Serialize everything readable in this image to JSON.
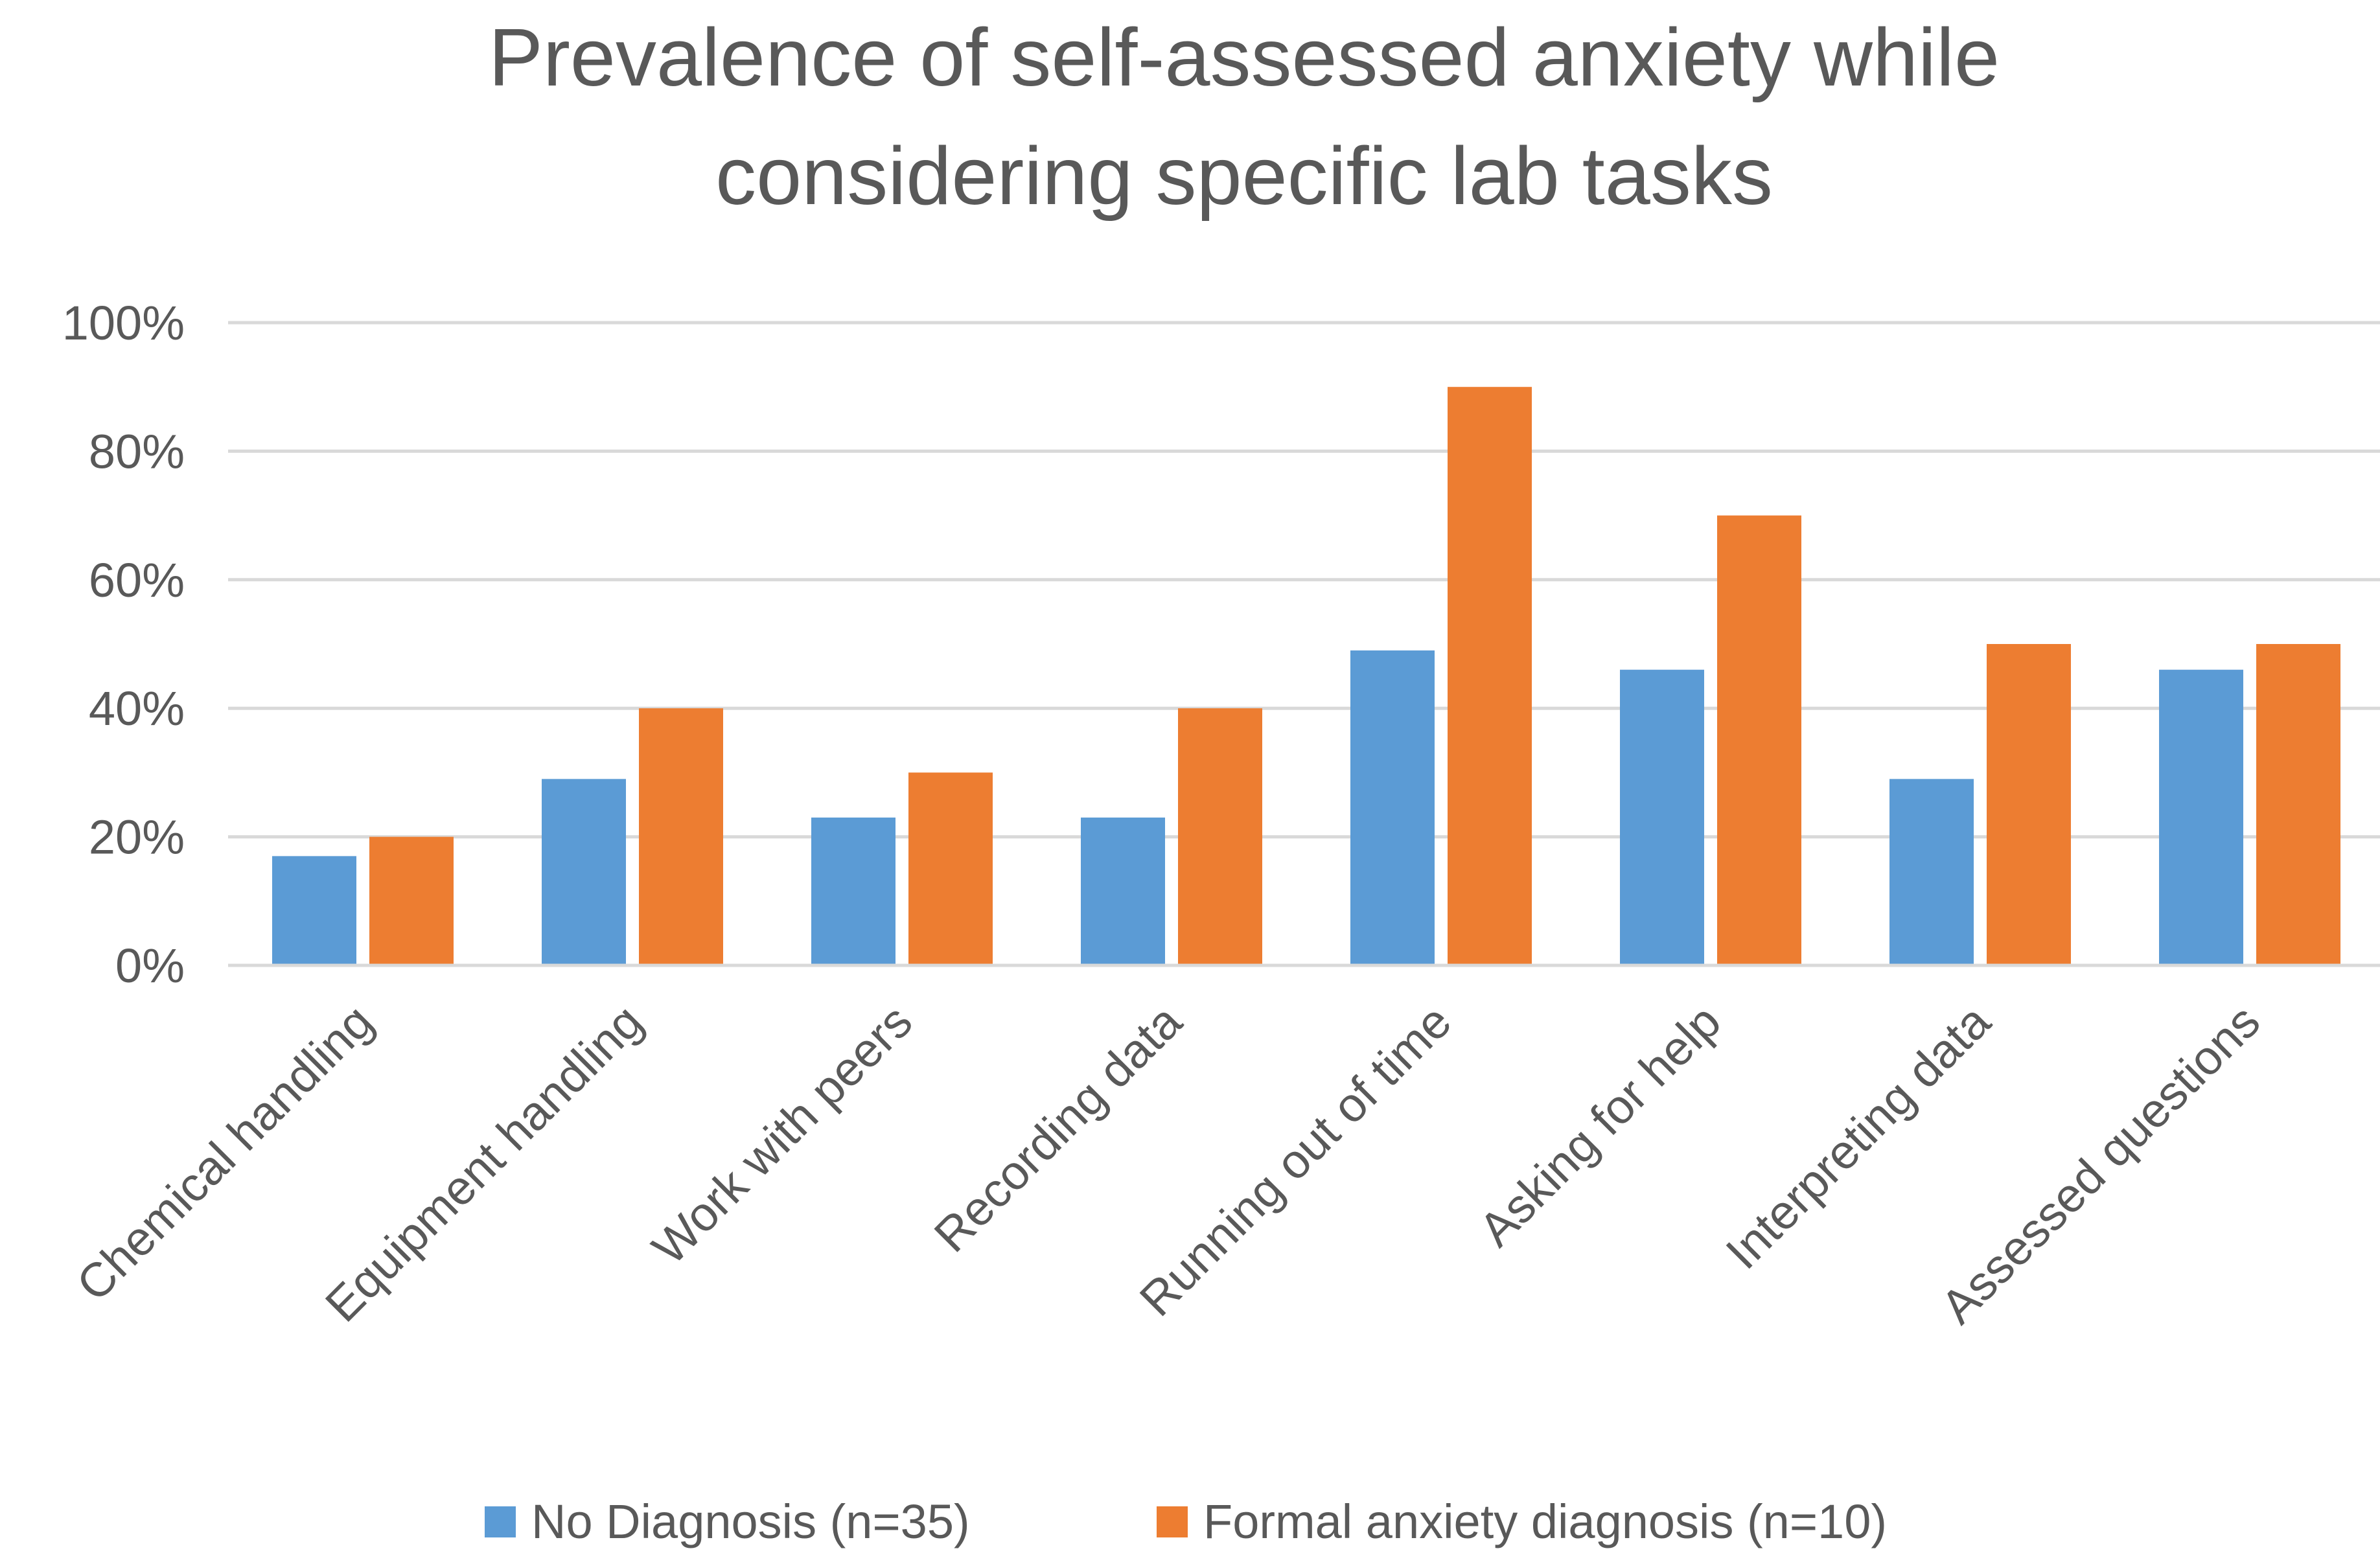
{
  "chart_data": {
    "type": "bar",
    "title_lines": [
      "Prevalence of self-assessed anxiety while",
      "considering specific lab tasks"
    ],
    "xlabel": "",
    "ylabel": "",
    "categories": [
      "Chemical handling",
      "Equipment handling",
      "Work with peers",
      "Recording data",
      "Running out of time",
      "Asking for help",
      "Interpreting data",
      "Assessed questions"
    ],
    "series": [
      {
        "name": "No Diagnosis (n=35)",
        "color": "#5B9BD5",
        "values": [
          17,
          29,
          23,
          23,
          49,
          46,
          29,
          46
        ]
      },
      {
        "name": "Formal anxiety diagnosis (n=10)",
        "color": "#ED7D31",
        "values": [
          20,
          40,
          30,
          40,
          90,
          70,
          50,
          50
        ]
      }
    ],
    "ylim": [
      0,
      100
    ],
    "yticks": [
      "0%",
      "20%",
      "40%",
      "60%",
      "80%",
      "100%"
    ],
    "grid": true,
    "legend_position": "bottom"
  }
}
